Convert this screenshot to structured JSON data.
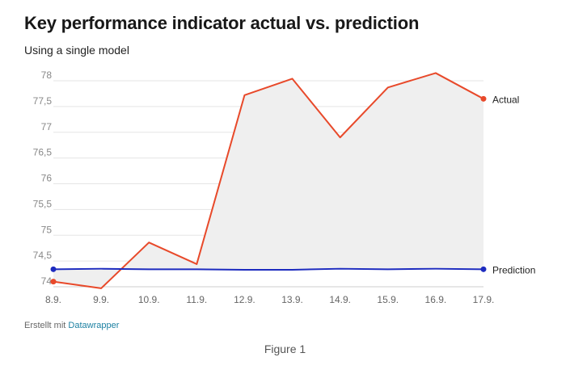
{
  "title": "Key performance indicator actual vs. prediction",
  "subtitle": "Using a single model",
  "footer": {
    "prefix": "Erstellt mit",
    "link_text": "Datawrapper"
  },
  "caption": "Figure 1",
  "chart_data": {
    "type": "line",
    "categories": [
      "8.9.",
      "9.9.",
      "10.9.",
      "11.9.",
      "12.9.",
      "13.9.",
      "14.9.",
      "15.9.",
      "16.9.",
      "17.9."
    ],
    "y_ticks": [
      74,
      74.5,
      75,
      75.5,
      76,
      76.5,
      77,
      77.5,
      78
    ],
    "y_tick_labels": [
      "74",
      "74,5",
      "75",
      "75,5",
      "76",
      "76,5",
      "77",
      "77,5",
      "78"
    ],
    "ylim": [
      74,
      78.2
    ],
    "grid": true,
    "series": [
      {
        "name": "Actual",
        "color": "#e8492a",
        "values": [
          74.1,
          73.97,
          74.86,
          74.44,
          77.72,
          78.04,
          76.9,
          77.87,
          78.15,
          77.65
        ]
      },
      {
        "name": "Prediction",
        "color": "#1d2bbf",
        "values": [
          74.34,
          74.35,
          74.34,
          74.34,
          74.33,
          74.33,
          74.35,
          74.34,
          74.35,
          74.34
        ]
      }
    ],
    "fill_between_color": "#efefef"
  }
}
